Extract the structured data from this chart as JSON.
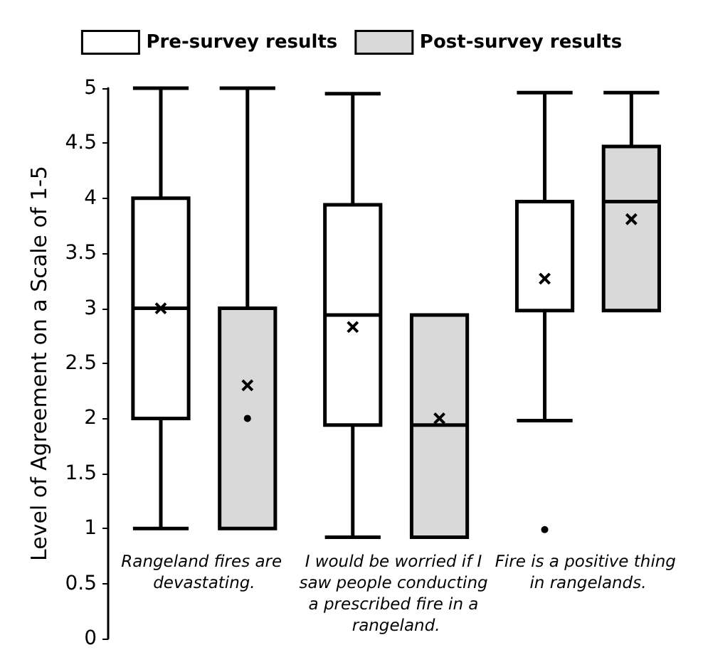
{
  "chart_data": {
    "type": "box",
    "ylabel": "Level of Agreement on a Scale of 1-5",
    "categories": [
      "Rangeland fires are devastating.",
      "I would be worried if I saw people conducting a prescribed fire in a rangeland.",
      "Fire is a positive thing in rangelands."
    ],
    "series": [
      {
        "name": "Pre-survey results",
        "color": "#ffffff",
        "boxes": [
          {
            "low": 1,
            "q1": 2,
            "median": 3,
            "q3": 4,
            "high": 5,
            "mean": 3
          },
          {
            "low": 0.92,
            "q1": 1.94,
            "median": 2.94,
            "q3": 3.94,
            "high": 4.95,
            "mean": 2.83
          },
          {
            "low": 1.98,
            "q1": 2.98,
            "median": 2.98,
            "q3": 3.97,
            "high": 4.96,
            "mean": 3.27,
            "outliers": [
              0.99
            ]
          }
        ]
      },
      {
        "name": "Post-survey results",
        "color": "#d9d9d9",
        "boxes": [
          {
            "low": 1,
            "q1": 1,
            "median": 1,
            "q3": 3,
            "high": 5,
            "mean": 2.3,
            "outliers": [
              2
            ]
          },
          {
            "low": 0.92,
            "q1": 0.92,
            "median": 1.94,
            "q3": 2.94,
            "high": 2.94,
            "mean": 2.0
          },
          {
            "low": 2.98,
            "q1": 2.98,
            "median": 3.97,
            "q3": 4.47,
            "high": 4.96,
            "mean": 3.81
          }
        ]
      }
    ],
    "ylim": [
      0,
      5
    ],
    "yticks": [
      0,
      0.5,
      1,
      1.5,
      2,
      2.5,
      3,
      3.5,
      4,
      4.5,
      5
    ],
    "legend": "top"
  }
}
